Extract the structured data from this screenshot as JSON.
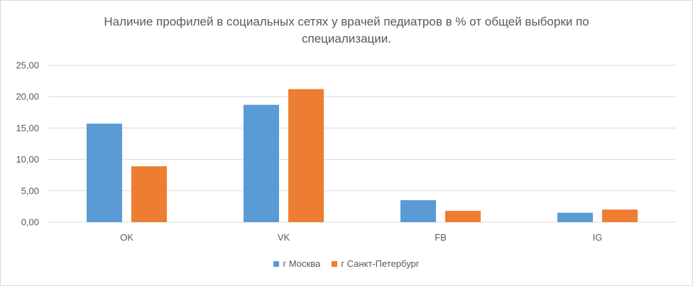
{
  "chart_data": {
    "type": "bar",
    "title_lines": [
      "Наличие профилей в социальных сетях у врачей педиатров в % от общей выборки по",
      "специализации."
    ],
    "categories": [
      "OK",
      "VK",
      "FB",
      "IG"
    ],
    "series": [
      {
        "name": "г Москва",
        "color": "#5b9bd5",
        "values": [
          15.7,
          18.7,
          3.5,
          1.5
        ]
      },
      {
        "name": "г Санкт-Петербург",
        "color": "#ed7d31",
        "values": [
          8.9,
          21.2,
          1.8,
          2.0
        ]
      }
    ],
    "y_ticks": [
      "0,00",
      "5,00",
      "10,00",
      "15,00",
      "20,00",
      "25,00"
    ],
    "ylim": [
      0,
      25
    ],
    "grid": true,
    "legend_position": "bottom"
  }
}
